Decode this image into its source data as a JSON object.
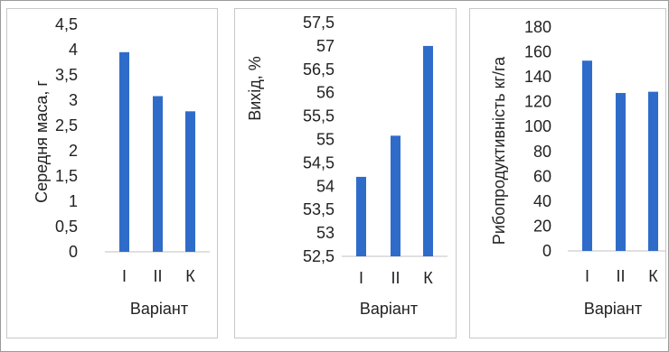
{
  "colors": {
    "bar": "#2f6cc9",
    "axis": "#c0c0c0",
    "text": "#222222"
  },
  "chart_data": [
    {
      "type": "bar",
      "categories": [
        "I",
        "II",
        "К"
      ],
      "values": [
        3.95,
        3.08,
        2.78
      ],
      "xlabel": "Варіант",
      "ylabel": "Середня маса, г",
      "ylim": [
        0,
        4.5
      ],
      "yticks": [
        "0",
        "0,5",
        "1",
        "1,5",
        "2",
        "2,5",
        "3",
        "3,5",
        "4",
        "4,5"
      ],
      "grid": false
    },
    {
      "type": "bar",
      "categories": [
        "I",
        "II",
        "К"
      ],
      "values": [
        54.2,
        55.08,
        57.0
      ],
      "xlabel": "Варіант",
      "ylabel": "Вихід, %",
      "ylim": [
        52.5,
        57.5
      ],
      "yticks": [
        "52,5",
        "53",
        "53,5",
        "54",
        "54,5",
        "55",
        "55,5",
        "56",
        "56,5",
        "57",
        "57,5"
      ],
      "grid": false
    },
    {
      "type": "bar",
      "categories": [
        "I",
        "II",
        "К"
      ],
      "values": [
        153,
        127,
        128
      ],
      "xlabel": "Варіант",
      "ylabel": "Рибопродуктивність кг/га",
      "ylim": [
        0,
        180
      ],
      "yticks": [
        "0",
        "20",
        "40",
        "60",
        "80",
        "100",
        "120",
        "140",
        "160",
        "180"
      ],
      "grid": false
    }
  ]
}
